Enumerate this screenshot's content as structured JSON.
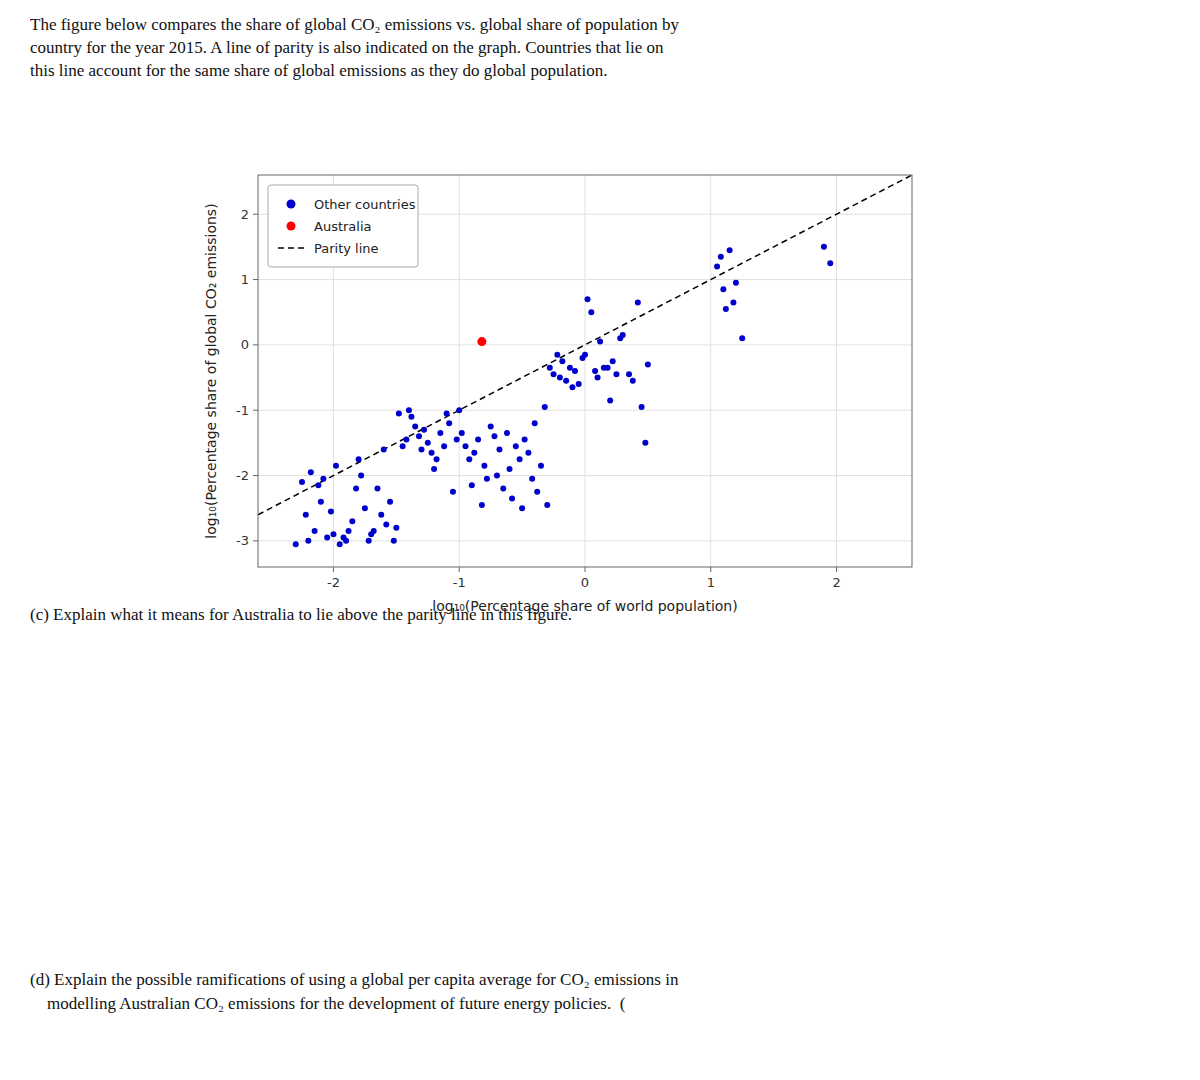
{
  "chart_data": {
    "type": "scatter",
    "annotations": [
      "The figure below compares the share of global CO₂ emissions vs. global share of population by",
      "country for the year 2015. A line of parity is also indicated on the graph. Countries that lie on",
      "this line account for the same share of global emissions as they do global population.",
      "(c) Explain what it means for Australia to lie above the parity line in this figure.",
      "(d) Explain the possible ramifications of using a global per capita average for CO₂ emissions in",
      "    modelling Australian CO₂ emissions for the development of future energy policies.  ("
    ],
    "xlabel": "log₁₀(Percentage share of world population)",
    "ylabel": "log₁₀(Percentage share of global CO₂ emissions)",
    "xlim": [
      -2.6,
      2.6
    ],
    "ylim": [
      -3.4,
      2.6
    ],
    "xticks": [
      -2,
      -1,
      0,
      1,
      2
    ],
    "yticks": [
      -3,
      -2,
      -1,
      0,
      1,
      2
    ],
    "grid": true,
    "legend": "upper left",
    "series": [
      {
        "name": "Other countries",
        "type": "scatter",
        "marker": "circle",
        "color": "#0000CD",
        "x": [
          -2.3,
          -2.25,
          -2.22,
          -2.2,
          -2.18,
          -2.15,
          -2.12,
          -2.1,
          -2.08,
          -2.05,
          -2.02,
          -2.0,
          -1.98,
          -1.95,
          -1.92,
          -1.9,
          -1.88,
          -1.85,
          -1.82,
          -1.8,
          -1.78,
          -1.75,
          -1.72,
          -1.7,
          -1.68,
          -1.65,
          -1.62,
          -1.6,
          -1.58,
          -1.55,
          -1.52,
          -1.5,
          -1.48,
          -1.45,
          -1.42,
          -1.4,
          -1.38,
          -1.35,
          -1.32,
          -1.3,
          -1.28,
          -1.25,
          -1.22,
          -1.2,
          -1.18,
          -1.15,
          -1.12,
          -1.1,
          -1.08,
          -1.05,
          -1.02,
          -1.0,
          -0.98,
          -0.95,
          -0.92,
          -0.9,
          -0.88,
          -0.85,
          -0.82,
          -0.8,
          -0.78,
          -0.75,
          -0.72,
          -0.7,
          -0.68,
          -0.65,
          -0.62,
          -0.6,
          -0.58,
          -0.55,
          -0.52,
          -0.5,
          -0.48,
          -0.45,
          -0.42,
          -0.4,
          -0.38,
          -0.35,
          -0.32,
          -0.3,
          -0.28,
          -0.25,
          -0.22,
          -0.2,
          -0.18,
          -0.15,
          -0.12,
          -0.1,
          -0.08,
          -0.05,
          -0.02,
          0.0,
          0.02,
          0.05,
          0.08,
          0.1,
          0.12,
          0.15,
          0.18,
          0.2,
          0.22,
          0.25,
          0.28,
          0.3,
          0.35,
          0.38,
          0.42,
          0.45,
          0.48,
          0.5,
          1.05,
          1.08,
          1.1,
          1.12,
          1.15,
          1.18,
          1.2,
          1.25,
          1.9,
          1.95
        ],
        "values": [
          -3.05,
          -2.1,
          -2.6,
          -3.0,
          -1.95,
          -2.85,
          -2.15,
          -2.4,
          -2.05,
          -2.95,
          -2.55,
          -2.9,
          -1.85,
          -3.05,
          -2.95,
          -3.0,
          -2.85,
          -2.7,
          -2.2,
          -1.75,
          -2.0,
          -2.5,
          -3.0,
          -2.9,
          -2.85,
          -2.2,
          -2.6,
          -1.6,
          -2.75,
          -2.4,
          -3.0,
          -2.8,
          -1.05,
          -1.55,
          -1.45,
          -1.0,
          -1.1,
          -1.25,
          -1.4,
          -1.6,
          -1.3,
          -1.5,
          -1.65,
          -1.9,
          -1.75,
          -1.35,
          -1.55,
          -1.05,
          -1.2,
          -2.25,
          -1.45,
          -1.0,
          -1.35,
          -1.55,
          -1.75,
          -2.15,
          -1.65,
          -1.45,
          -2.45,
          -1.85,
          -2.05,
          -1.25,
          -1.4,
          -2.0,
          -1.6,
          -2.2,
          -1.35,
          -1.9,
          -2.35,
          -1.55,
          -1.75,
          -2.5,
          -1.45,
          -1.65,
          -2.05,
          -1.2,
          -2.25,
          -1.85,
          -0.95,
          -2.45,
          -0.35,
          -0.45,
          -0.15,
          -0.5,
          -0.25,
          -0.55,
          -0.35,
          -0.65,
          -0.4,
          -0.6,
          -0.2,
          -0.15,
          0.7,
          0.5,
          -0.4,
          -0.5,
          0.05,
          -0.35,
          -0.35,
          -0.85,
          -0.25,
          -0.45,
          0.1,
          0.15,
          -0.45,
          -0.55,
          0.65,
          -0.95,
          -1.5,
          -0.3,
          1.2,
          1.35,
          0.85,
          0.55,
          1.45,
          0.65,
          0.95,
          0.1,
          1.5,
          1.25
        ]
      },
      {
        "name": "Australia",
        "type": "scatter",
        "marker": "circle",
        "color": "#FF0000",
        "x": [
          -0.82
        ],
        "values": [
          0.05
        ]
      },
      {
        "name": "Parity line",
        "type": "line",
        "line_style": "dashed",
        "color": "#000000",
        "x": [
          -2.6,
          2.6
        ],
        "values": [
          -2.6,
          2.6
        ]
      }
    ]
  }
}
